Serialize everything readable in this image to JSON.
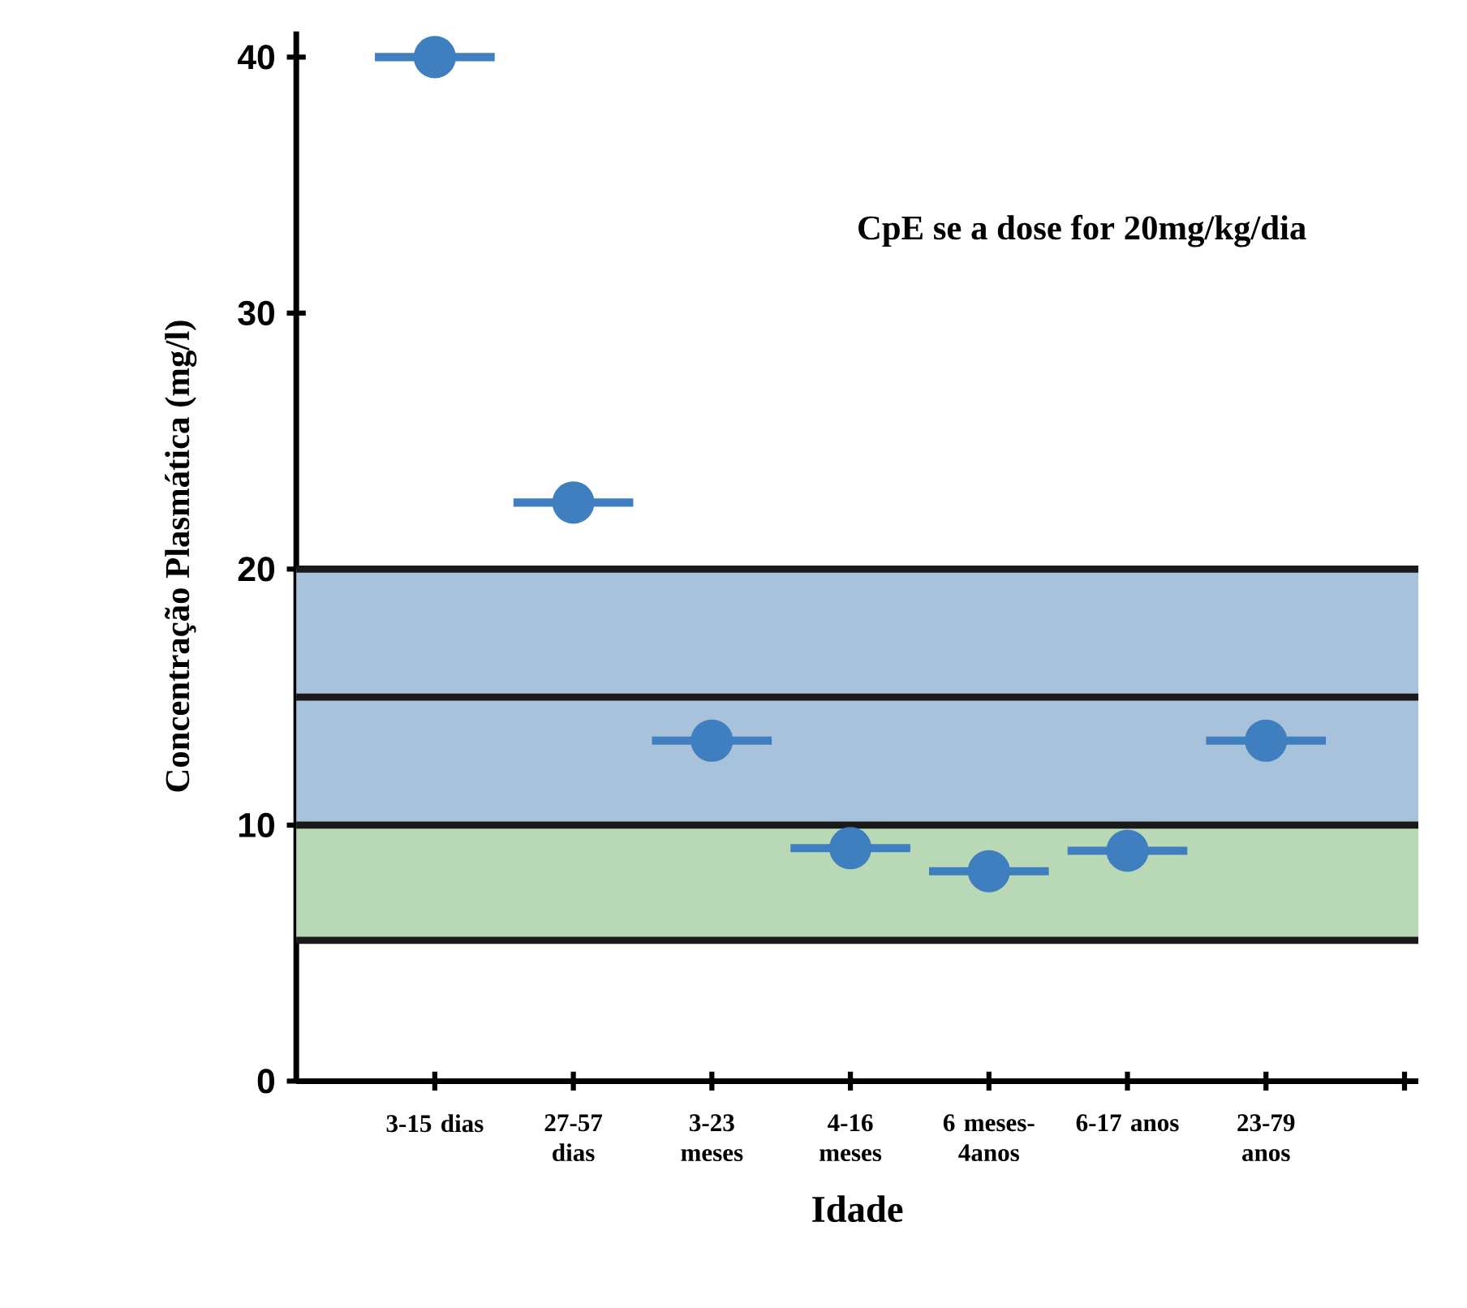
{
  "chart_data": {
    "type": "scatter",
    "xlabel": "Idade",
    "ylabel": "Concentração Plasmática (mg/l)",
    "categories": [
      "3-15 dias",
      "27-57 dias",
      "3-23 meses",
      "4-16 meses",
      "6 meses-4anos",
      "6-17 anos",
      "23-79 anos",
      null
    ],
    "series": [
      {
        "color": "#3f7fbf",
        "values": [
          40,
          22.6,
          13.3,
          9.1,
          8.2,
          9.0,
          13.3,
          null
        ]
      }
    ],
    "marker": "circle",
    "ylim": [
      0,
      41
    ],
    "yticks": [
      0,
      10,
      20,
      30,
      40
    ],
    "bands": [
      {
        "axis": "y",
        "from": 10,
        "to": 20,
        "color": "#a9c2db"
      },
      {
        "axis": "y",
        "from": 5.5,
        "to": 10,
        "color": "#b9d8b6"
      }
    ],
    "ref_lines": [
      {
        "axis": "y",
        "value": 20,
        "color": "#1a1a1a"
      },
      {
        "axis": "y",
        "value": 15,
        "color": "#1a1a1a"
      },
      {
        "axis": "y",
        "value": 10,
        "color": "#1a1a1a"
      },
      {
        "axis": "y",
        "value": 5.5,
        "color": "#1a1a1a"
      }
    ],
    "annotations": [
      "CpE se a dose for 20mg/kg/dia"
    ]
  }
}
